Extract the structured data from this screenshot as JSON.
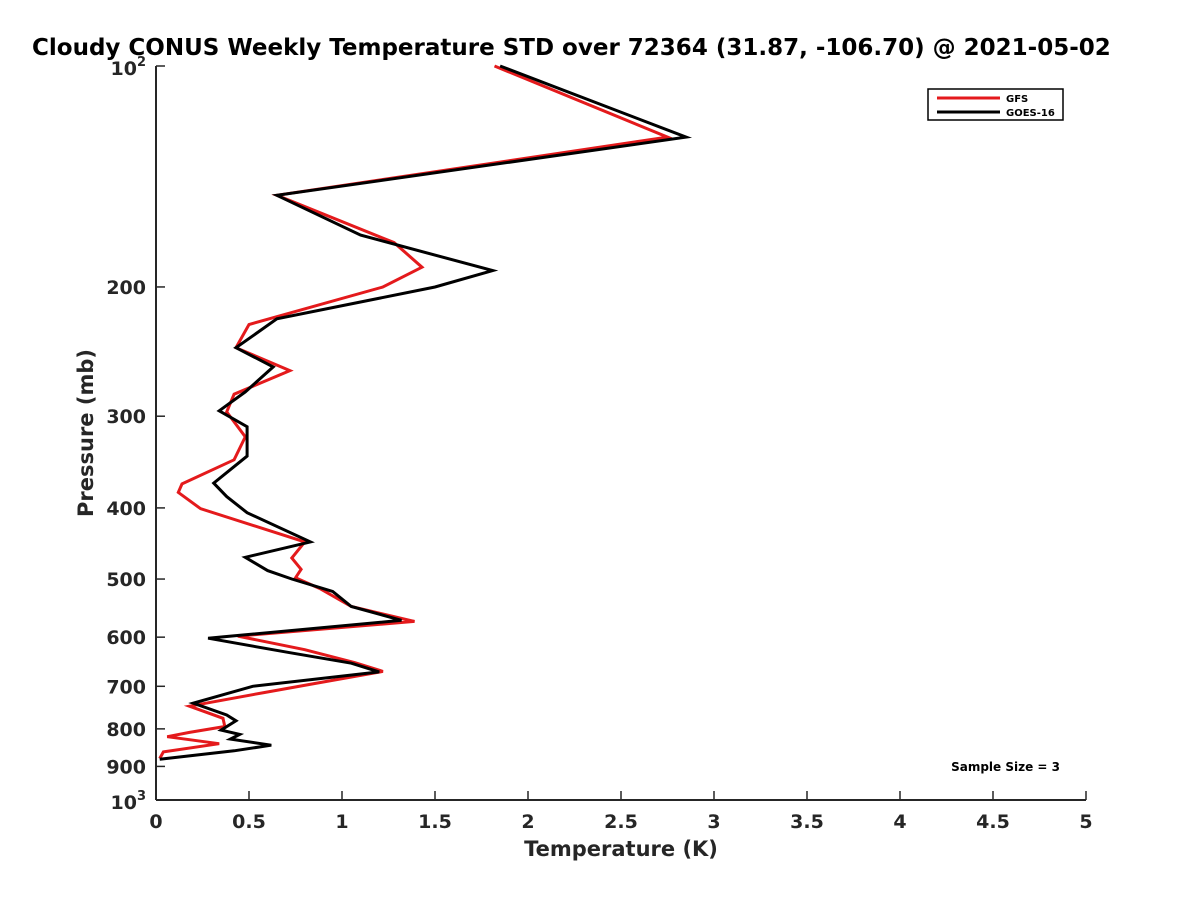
{
  "chart_data": {
    "type": "line",
    "title": "Cloudy CONUS Weekly Temperature STD over 72364 (31.87, -106.70) @ 2021-05-02",
    "xlabel": "Temperature (K)",
    "ylabel": "Pressure (mb)",
    "xlim": [
      0,
      5
    ],
    "ylim": [
      100,
      1000
    ],
    "y_scale": "log",
    "y_reversed": true,
    "x_ticks": [
      "0",
      "0.5",
      "1",
      "1.5",
      "2",
      "2.5",
      "3",
      "3.5",
      "4",
      "4.5",
      "5"
    ],
    "y_ticks": [
      {
        "value": 100,
        "base": "10",
        "exp": "2"
      },
      {
        "value": 200,
        "label": "200"
      },
      {
        "value": 300,
        "label": "300"
      },
      {
        "value": 400,
        "label": "400"
      },
      {
        "value": 500,
        "label": "500"
      },
      {
        "value": 600,
        "label": "600"
      },
      {
        "value": 700,
        "label": "700"
      },
      {
        "value": 800,
        "label": "800"
      },
      {
        "value": 900,
        "label": "900"
      },
      {
        "value": 1000,
        "base": "10",
        "exp": "3"
      }
    ],
    "legend_position": "top-right",
    "grid": false,
    "annotation": "Sample Size = 3",
    "series": [
      {
        "name": "GFS",
        "color": "#e41a1c",
        "points": [
          [
            1.82,
            100
          ],
          [
            2.75,
            125
          ],
          [
            0.65,
            150
          ],
          [
            1.28,
            174
          ],
          [
            1.43,
            188
          ],
          [
            1.22,
            200
          ],
          [
            0.5,
            225
          ],
          [
            0.43,
            242
          ],
          [
            0.72,
            260
          ],
          [
            0.42,
            280
          ],
          [
            0.38,
            296
          ],
          [
            0.48,
            320
          ],
          [
            0.42,
            344
          ],
          [
            0.14,
            371
          ],
          [
            0.12,
            381
          ],
          [
            0.24,
            401
          ],
          [
            0.8,
            445
          ],
          [
            0.73,
            468
          ],
          [
            0.78,
            485
          ],
          [
            0.75,
            498
          ],
          [
            0.88,
            515
          ],
          [
            1.05,
            545
          ],
          [
            1.39,
            571
          ],
          [
            0.44,
            598
          ],
          [
            0.8,
            624
          ],
          [
            1.07,
            650
          ],
          [
            1.22,
            668
          ],
          [
            0.85,
            694
          ],
          [
            0.58,
            714
          ],
          [
            0.18,
            745
          ],
          [
            0.36,
            774
          ],
          [
            0.37,
            794
          ],
          [
            0.18,
            809
          ],
          [
            0.06,
            820
          ],
          [
            0.34,
            838
          ],
          [
            0.04,
            860
          ],
          [
            0.02,
            878
          ]
        ]
      },
      {
        "name": "GOES-16",
        "color": "#000000",
        "points": [
          [
            1.85,
            100
          ],
          [
            2.85,
            125
          ],
          [
            0.65,
            150
          ],
          [
            1.1,
            170
          ],
          [
            1.81,
            190
          ],
          [
            1.5,
            200
          ],
          [
            0.65,
            221
          ],
          [
            0.43,
            242
          ],
          [
            0.63,
            257
          ],
          [
            0.48,
            278
          ],
          [
            0.34,
            295
          ],
          [
            0.49,
            310
          ],
          [
            0.49,
            340
          ],
          [
            0.31,
            370
          ],
          [
            0.38,
            386
          ],
          [
            0.49,
            406
          ],
          [
            0.83,
            445
          ],
          [
            0.48,
            467
          ],
          [
            0.6,
            487
          ],
          [
            0.73,
            500
          ],
          [
            0.95,
            520
          ],
          [
            1.05,
            545
          ],
          [
            1.32,
            569
          ],
          [
            0.28,
            602
          ],
          [
            0.72,
            630
          ],
          [
            1.05,
            651
          ],
          [
            1.2,
            669
          ],
          [
            0.52,
            700
          ],
          [
            0.2,
            738
          ],
          [
            0.38,
            766
          ],
          [
            0.43,
            780
          ],
          [
            0.35,
            803
          ],
          [
            0.45,
            814
          ],
          [
            0.4,
            826
          ],
          [
            0.62,
            842
          ],
          [
            0.42,
            857
          ],
          [
            0.02,
            880
          ]
        ]
      }
    ]
  }
}
